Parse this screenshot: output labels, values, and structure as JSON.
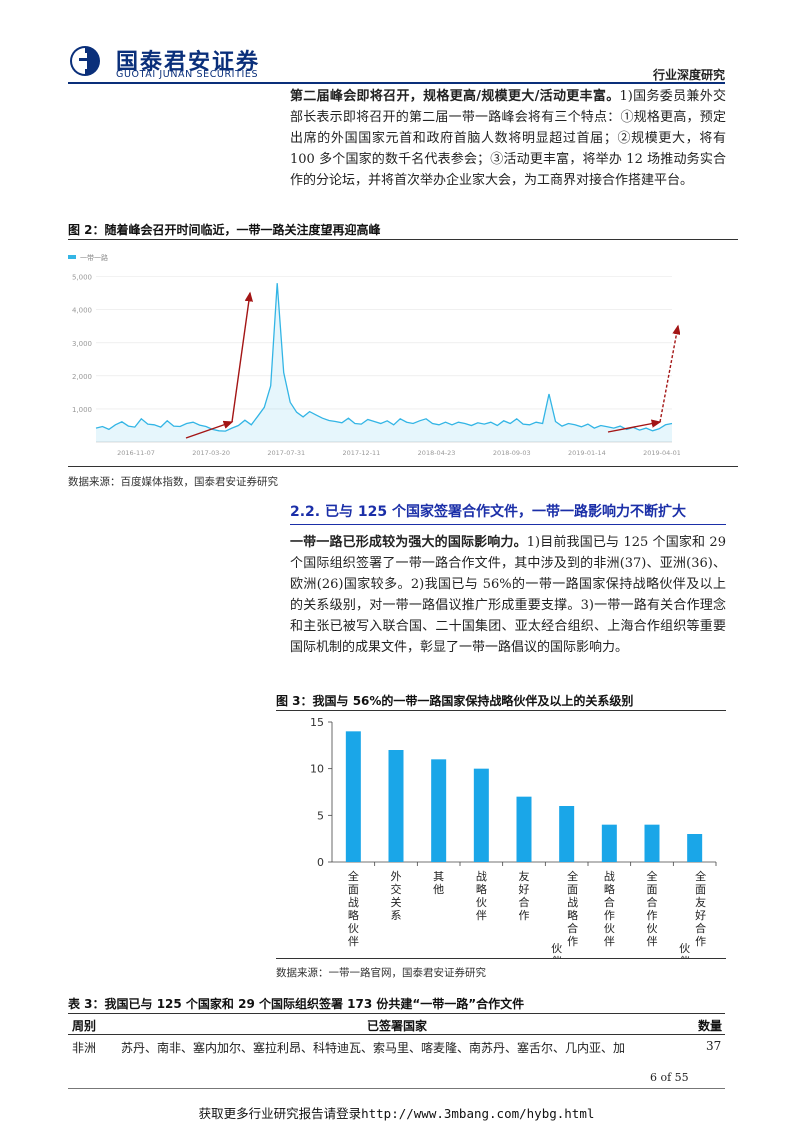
{
  "header": {
    "logo_cn": "国泰君安证券",
    "logo_en": "GUOTAI JUNAN SECURITIES",
    "report_type": "行业深度研究",
    "brand_color": "#0a2f7a"
  },
  "para1": {
    "lead": "第二届峰会即将召开，规格更高/规模更大/活动更丰富。",
    "body": "1)国务委员兼外交部长表示即将召开的第二届一带一路峰会将有三个特点：①规格更高，预定出席的外国国家元首和政府首脑人数将明显超过首届；②规模更大，将有 100 多个国家的数千名代表参会；③活动更丰富，将举办 12 场推动务实合作的分论坛，并将首次举办企业家大会，为工商界对接合作搭建平台。"
  },
  "figure2": {
    "title": "图 2：随着峰会召开时间临近，一带一路关注度望再迎高峰",
    "source": "数据来源：百度媒体指数，国泰君安证券研究",
    "chart_data": {
      "type": "line",
      "title": "",
      "legend": [
        "一带一路"
      ],
      "y_ticks": [
        "1,000",
        "2,000",
        "3,000",
        "4,000",
        "5,000"
      ],
      "x_ticks": [
        "2016-11-07",
        "2017-03-20",
        "2017-07-31",
        "2017-12-11",
        "2018-04-23",
        "2018-09-03",
        "2019-01-14",
        "2019-04-01"
      ],
      "ylim": [
        0,
        5200
      ],
      "series": [
        {
          "name": "一带一路",
          "values": [
            420,
            470,
            380,
            520,
            610,
            480,
            450,
            700,
            540,
            520,
            450,
            640,
            480,
            470,
            560,
            600,
            510,
            470,
            380,
            340,
            330,
            420,
            500,
            660,
            520,
            780,
            1050,
            1700,
            4800,
            2100,
            1200,
            900,
            760,
            920,
            820,
            720,
            650,
            620,
            580,
            720,
            560,
            540,
            680,
            620,
            560,
            640,
            520,
            700,
            600,
            560,
            640,
            700,
            560,
            520,
            600,
            520,
            600,
            560,
            500,
            580,
            540,
            600,
            500,
            640,
            560,
            700,
            540,
            520,
            600,
            560,
            1450,
            620,
            480,
            560,
            520,
            460,
            540,
            420,
            500,
            460,
            420,
            480,
            380,
            440,
            360,
            420,
            340,
            400,
            520,
            560
          ],
          "color": "#33b5e5"
        }
      ],
      "annotation_arrow_color": "#a31515"
    }
  },
  "section": {
    "heading": "2.2.    已与 125 个国家签署合作文件，一带一路影响力不断扩大"
  },
  "para2": {
    "lead": "一带一路已形成较为强大的国际影响力。",
    "body": "1)目前我国已与 125 个国家和 29 个国际组织签署了一带一路合作文件，其中涉及到的非洲(37)、亚洲(36)、欧洲(26)国家较多。2)我国已与 56%的一带一路国家保持战略伙伴及以上的关系级别，对一带一路倡议推广形成重要支撑。3)一带一路有关合作理念和主张已被写入联合国、二十国集团、亚太经合组织、上海合作组织等重要国际机制的成果文件，彰显了一带一路倡议的国际影响力。"
  },
  "figure3": {
    "title": "图 3：我国与 56%的一带一路国家保持战略伙伴及以上的关系级别",
    "source": "数据来源：一带一路官网，国泰君安证券研究",
    "chart_data": {
      "type": "bar",
      "title": "",
      "categories": [
        "全面战略伙伴",
        "外交关系",
        "其他",
        "战略伙伴",
        "友好合作",
        "全面战略合作伙伴",
        "战略合作伙伴",
        "全面合作伙伴",
        "全面友好合作伙伴"
      ],
      "values": [
        14,
        12,
        11,
        10,
        7,
        6,
        4,
        4,
        3
      ],
      "y_ticks": [
        "0",
        "5",
        "10",
        "15"
      ],
      "ylim": [
        0,
        15
      ],
      "bar_color": "#1aa6e8"
    }
  },
  "table3": {
    "title": "表 3：我国已与 125 个国家和 29 个国际组织签署 173 份共建“一带一路”合作文件",
    "headers": {
      "region": "周别",
      "countries": "已签署国家",
      "count": "数量"
    },
    "rows": [
      {
        "region": "非洲",
        "countries": "苏丹、南非、塞内加尔、塞拉利昂、科特迪瓦、索马里、喀麦隆、南苏丹、塞舌尔、几内亚、加",
        "count": "37"
      }
    ]
  },
  "footer": {
    "page": "6 of 55",
    "link": "获取更多行业研究报告请登录http://www.3mbang.com/hybg.html"
  }
}
